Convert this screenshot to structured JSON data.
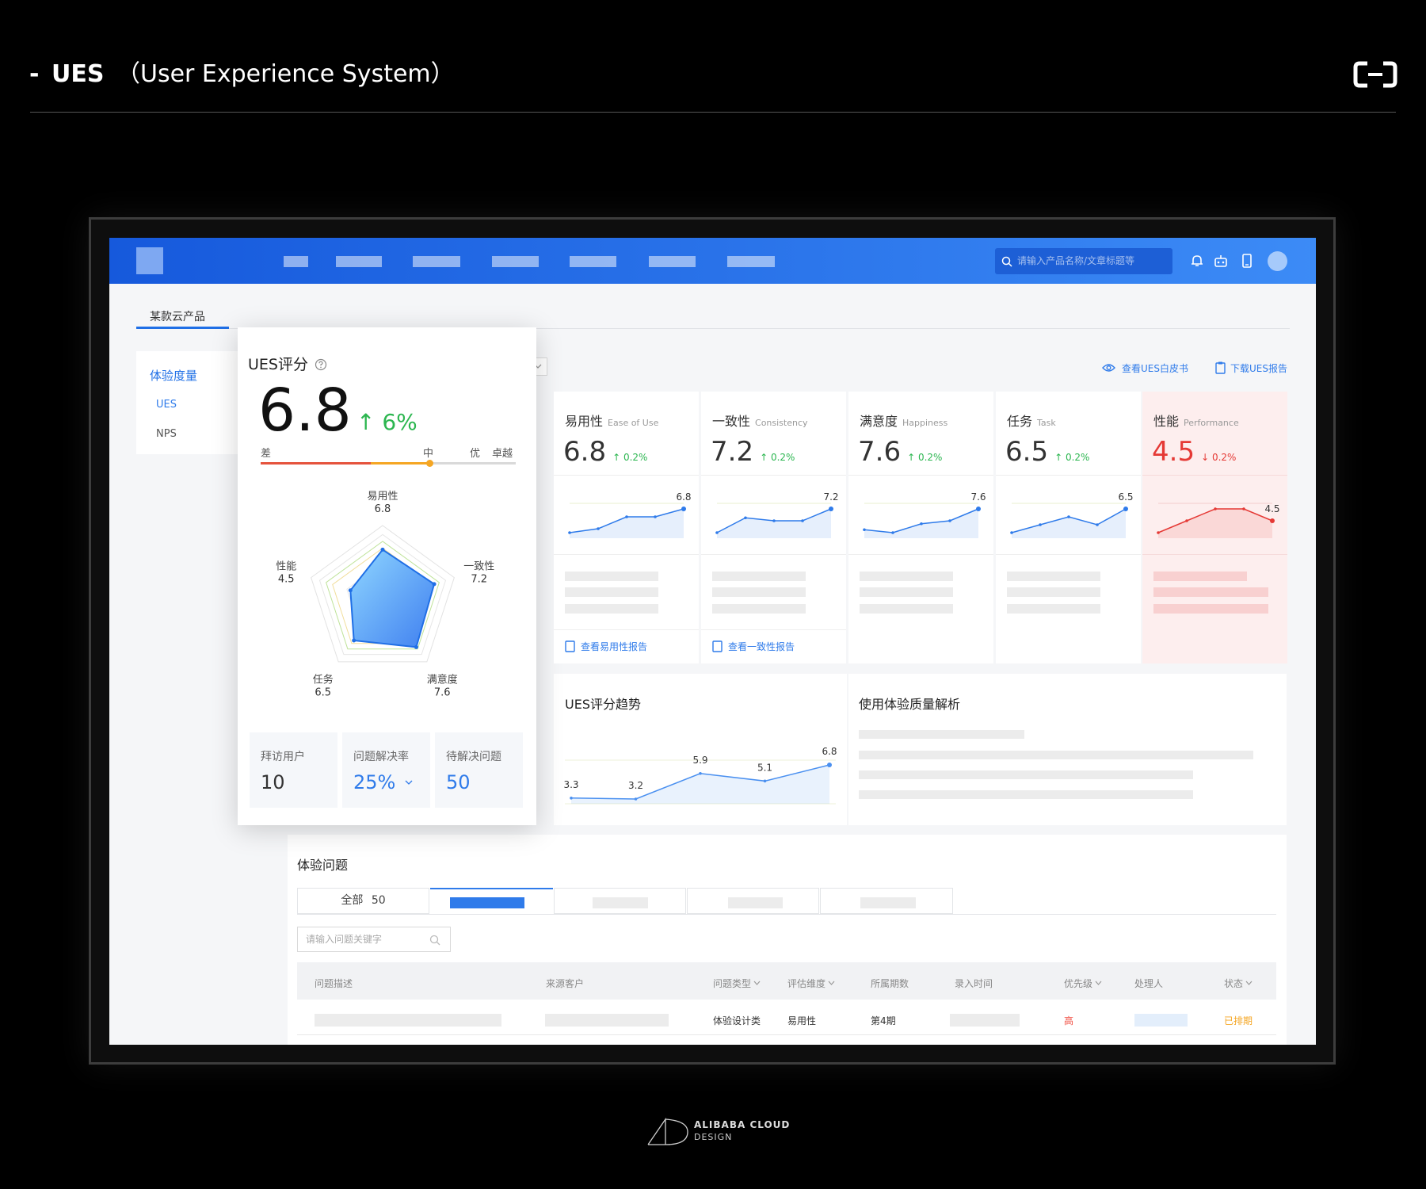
{
  "header": {
    "prefix": "-",
    "title": "UES",
    "subtitle": "（User Experience System）"
  },
  "nav": {
    "search_placeholder": "请输入产品名称/文章标题等"
  },
  "product_tab": "某款云产品",
  "sidebar": {
    "section": "体验度量",
    "items": [
      "UES",
      "NPS"
    ]
  },
  "links": [
    "查看UES白皮书",
    "下载UES报告"
  ],
  "score_card": {
    "title": "UES评分",
    "score": "6.8",
    "change": "↑ 6%",
    "change_color": "#2cb650",
    "scale": [
      "差",
      "中",
      "优",
      "卓越"
    ],
    "stats": [
      {
        "label": "拜访用户",
        "value": "10",
        "color": "#333333"
      },
      {
        "label": "问题解决率",
        "value": "25%",
        "color": "#2f7bea"
      },
      {
        "label": "待解决问题",
        "value": "50",
        "color": "#2f7bea"
      }
    ]
  },
  "metrics": [
    {
      "name": "易用性",
      "name_en": "Ease of Use",
      "value": "6.8",
      "change": "↑ 0.2%",
      "color": "#333333",
      "change_color": "#2cb650",
      "background": "#ffffff",
      "link": "查看易用性报告"
    },
    {
      "name": "一致性",
      "name_en": "Consistency",
      "value": "7.2",
      "change": "↑ 0.2%",
      "color": "#333333",
      "change_color": "#2cb650",
      "background": "#ffffff",
      "link": "查看一致性报告"
    },
    {
      "name": "满意度",
      "name_en": "Happiness",
      "value": "7.6",
      "change": "↑ 0.2%",
      "color": "#333333",
      "change_color": "#2cb650",
      "background": "#ffffff"
    },
    {
      "name": "任务",
      "name_en": "Task",
      "value": "6.5",
      "change": "↑ 0.2%",
      "color": "#333333",
      "change_color": "#2cb650",
      "background": "#ffffff"
    },
    {
      "name": "性能",
      "name_en": "Performance",
      "value": "4.5",
      "change": "↓ 0.2%",
      "color": "#e53935",
      "change_color": "#e53935",
      "background": "#fdeeee"
    }
  ],
  "analysis": {
    "title": "使用体验质量解析"
  },
  "issues": {
    "title": "体验问题",
    "tabs": [
      {
        "label": "全部",
        "count": "50"
      }
    ],
    "search_placeholder": "请输入问题关键字",
    "columns": [
      {
        "label": "问题描述",
        "filter": false
      },
      {
        "label": "来源客户",
        "filter": false
      },
      {
        "label": "问题类型",
        "filter": true
      },
      {
        "label": "评估维度",
        "filter": true
      },
      {
        "label": "所属期数",
        "filter": false
      },
      {
        "label": "录入时间",
        "filter": false
      },
      {
        "label": "优先级",
        "filter": true
      },
      {
        "label": "处理人",
        "filter": false
      },
      {
        "label": "状态",
        "filter": true
      }
    ],
    "row": {
      "type": "体验设计类",
      "dimension": "易用性",
      "period": "第4期",
      "priority": "高",
      "priority_color": "#f04a3e",
      "status": "已排期",
      "status_color": "#f5a623"
    }
  },
  "footer": {
    "brand": "ALIBABA CLOUD",
    "sub": "DESIGN"
  },
  "chart_data": [
    {
      "type": "radar",
      "categories": [
        "易用性",
        "一致性",
        "满意度",
        "任务",
        "性能"
      ],
      "values": [
        6.8,
        7.2,
        7.6,
        6.5,
        4.5
      ],
      "rlim": [
        0,
        10
      ],
      "color": "#1f6fe6"
    },
    {
      "type": "line",
      "values": [
        6.2,
        6.3,
        6.6,
        6.6,
        6.8
      ],
      "color": "#2f7bea"
    },
    {
      "type": "line",
      "values": [
        6.4,
        6.9,
        6.8,
        6.8,
        7.2
      ],
      "color": "#2f7bea"
    },
    {
      "type": "line",
      "values": [
        6.9,
        6.8,
        7.1,
        7.2,
        7.6
      ],
      "color": "#2f7bea"
    },
    {
      "type": "line",
      "values": [
        5.9,
        6.1,
        6.3,
        6.1,
        6.5
      ],
      "color": "#2f7bea"
    },
    {
      "type": "line",
      "values": [
        4.2,
        4.5,
        4.8,
        4.8,
        4.5
      ],
      "color": "#e53935"
    },
    {
      "type": "line",
      "title": "UES评分趋势",
      "values": [
        3.3,
        3.2,
        5.9,
        5.1,
        6.8
      ],
      "color": "#4a90f0"
    }
  ]
}
